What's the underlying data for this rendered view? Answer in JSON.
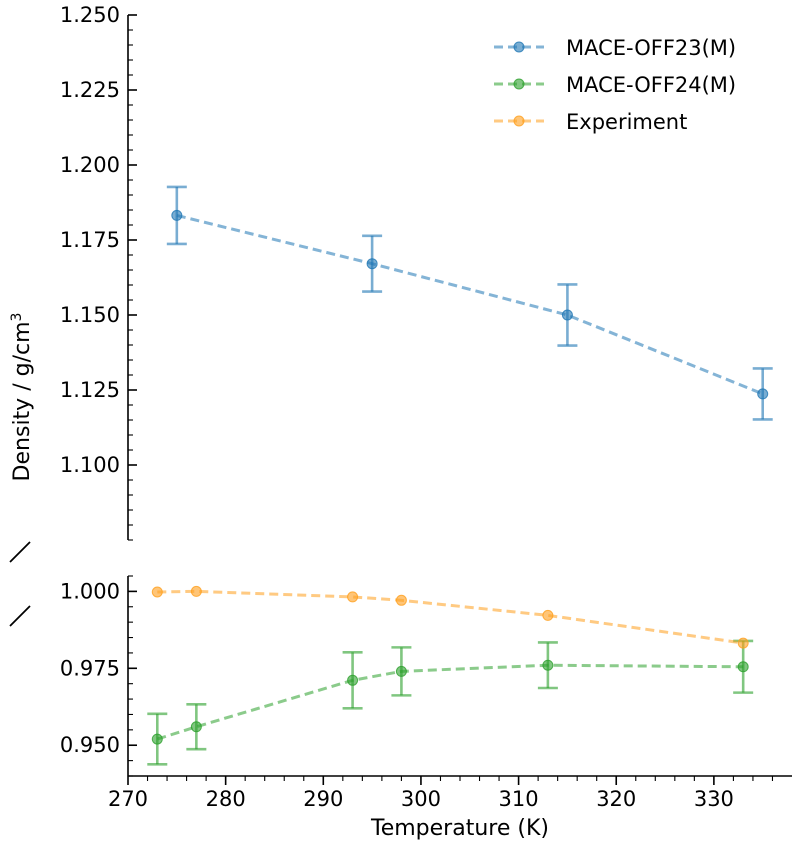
{
  "chart_data": {
    "type": "line",
    "title": "",
    "xlabel": "Temperature (K)",
    "ylabel_main": "Density / g/cm",
    "ylabel_sup": "3",
    "xlim": [
      270,
      338
    ],
    "ylim_top": [
      1.075,
      1.25
    ],
    "ylim_bottom": [
      0.94,
      1.005
    ],
    "x_ticks": [
      270,
      280,
      290,
      300,
      310,
      320,
      330
    ],
    "x_tick_labels": [
      "270",
      "280",
      "290",
      "300",
      "310",
      "320",
      "330"
    ],
    "y_ticks_top": [
      1.1,
      1.125,
      1.15,
      1.175,
      1.2,
      1.225,
      1.25
    ],
    "y_tick_labels_top": [
      "1.100",
      "1.125",
      "1.150",
      "1.175",
      "1.200",
      "1.225",
      "1.250"
    ],
    "y_ticks_bottom": [
      0.95,
      0.975,
      1.0
    ],
    "y_tick_labels_bottom": [
      "0.950",
      "0.975",
      "1.000"
    ],
    "legend_position": "top-right",
    "series": [
      {
        "name": "MACE-OFF23(M)",
        "color": "#1f77b4",
        "panel": "top",
        "x": [
          275,
          295,
          315,
          335
        ],
        "y": [
          1.1832,
          1.1671,
          1.15,
          1.1237
        ],
        "yerr": [
          0.0095,
          0.0093,
          0.0102,
          0.0085
        ]
      },
      {
        "name": "MACE-OFF24(M)",
        "color": "#2ca02c",
        "panel": "bottom",
        "x": [
          273,
          277,
          293,
          298,
          313,
          333
        ],
        "y": [
          0.952,
          0.956,
          0.9711,
          0.974,
          0.976,
          0.9755
        ],
        "yerr": [
          0.0082,
          0.0073,
          0.0091,
          0.0078,
          0.0074,
          0.0084
        ]
      },
      {
        "name": "Experiment",
        "color": "#ff9f1c",
        "panel": "bottom",
        "x": [
          273,
          277,
          293,
          298,
          313,
          333
        ],
        "y": [
          0.9998,
          1.0,
          0.9982,
          0.9971,
          0.9922,
          0.9832
        ],
        "yerr": null
      }
    ]
  }
}
